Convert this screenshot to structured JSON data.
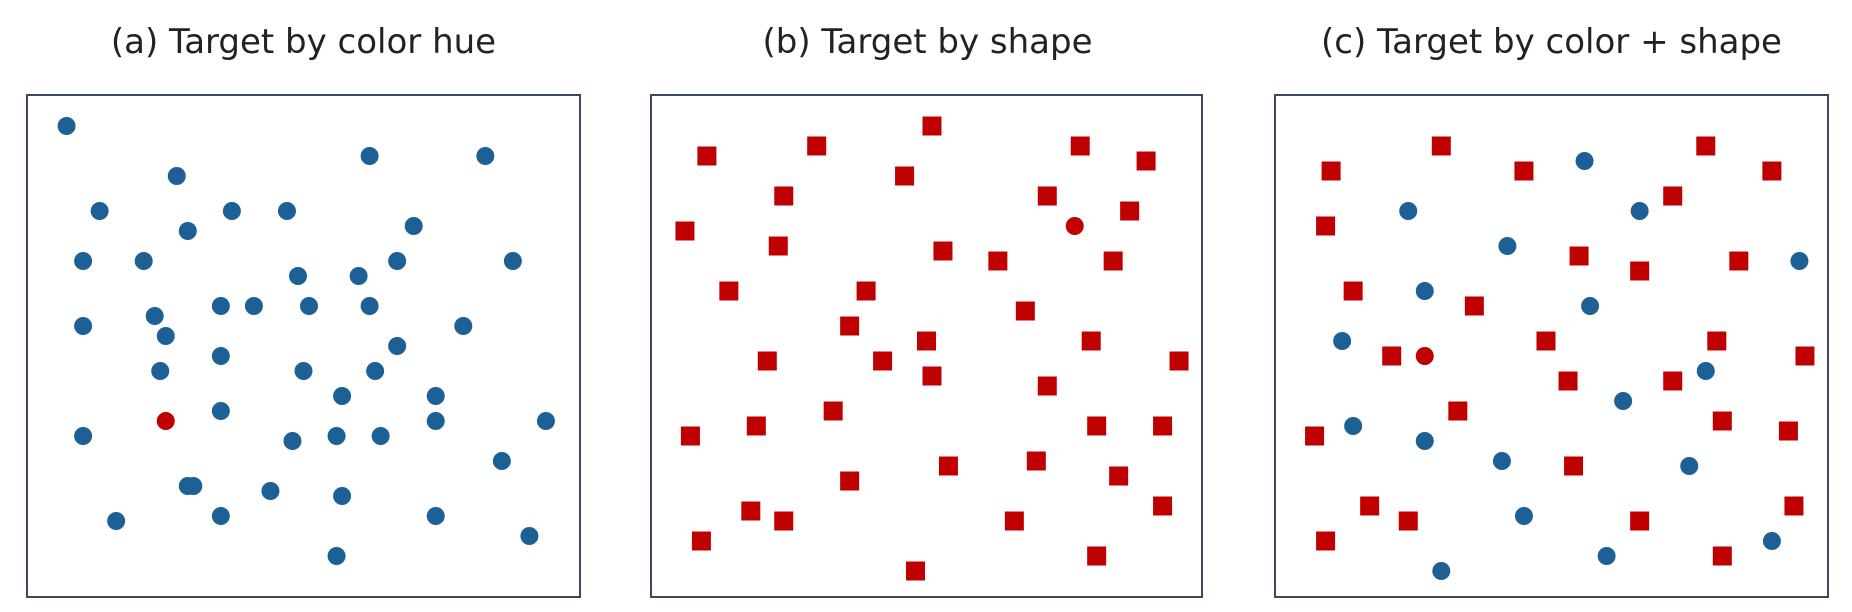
{
  "colors": {
    "distractor_blue": "#1d6096",
    "target_red": "#c00000",
    "frame": "#3a4a66"
  },
  "panels": [
    {
      "title": "(a)  Target by color hue",
      "items": [
        {
          "s": "c",
          "c": "b",
          "p": [
            0.07,
            0.06
          ]
        },
        {
          "s": "c",
          "c": "b",
          "p": [
            0.62,
            0.12
          ]
        },
        {
          "s": "c",
          "c": "b",
          "p": [
            0.83,
            0.12
          ]
        },
        {
          "s": "c",
          "c": "b",
          "p": [
            0.27,
            0.16
          ]
        },
        {
          "s": "c",
          "c": "b",
          "p": [
            0.13,
            0.23
          ]
        },
        {
          "s": "c",
          "c": "b",
          "p": [
            0.37,
            0.23
          ]
        },
        {
          "s": "c",
          "c": "b",
          "p": [
            0.47,
            0.23
          ]
        },
        {
          "s": "c",
          "c": "b",
          "p": [
            0.29,
            0.27
          ]
        },
        {
          "s": "c",
          "c": "b",
          "p": [
            0.7,
            0.26
          ]
        },
        {
          "s": "c",
          "c": "b",
          "p": [
            0.1,
            0.33
          ]
        },
        {
          "s": "c",
          "c": "b",
          "p": [
            0.21,
            0.33
          ]
        },
        {
          "s": "c",
          "c": "b",
          "p": [
            0.67,
            0.33
          ]
        },
        {
          "s": "c",
          "c": "b",
          "p": [
            0.88,
            0.33
          ]
        },
        {
          "s": "c",
          "c": "b",
          "p": [
            0.49,
            0.36
          ]
        },
        {
          "s": "c",
          "c": "b",
          "p": [
            0.6,
            0.36
          ]
        },
        {
          "s": "c",
          "c": "b",
          "p": [
            0.35,
            0.42
          ]
        },
        {
          "s": "c",
          "c": "b",
          "p": [
            0.41,
            0.42
          ]
        },
        {
          "s": "c",
          "c": "b",
          "p": [
            0.51,
            0.42
          ]
        },
        {
          "s": "c",
          "c": "b",
          "p": [
            0.62,
            0.42
          ]
        },
        {
          "s": "c",
          "c": "b",
          "p": [
            0.23,
            0.44
          ]
        },
        {
          "s": "c",
          "c": "b",
          "p": [
            0.1,
            0.46
          ]
        },
        {
          "s": "c",
          "c": "b",
          "p": [
            0.79,
            0.46
          ]
        },
        {
          "s": "c",
          "c": "b",
          "p": [
            0.25,
            0.48
          ]
        },
        {
          "s": "c",
          "c": "b",
          "p": [
            0.67,
            0.5
          ]
        },
        {
          "s": "c",
          "c": "b",
          "p": [
            0.35,
            0.52
          ]
        },
        {
          "s": "c",
          "c": "b",
          "p": [
            0.24,
            0.55
          ]
        },
        {
          "s": "c",
          "c": "b",
          "p": [
            0.5,
            0.55
          ]
        },
        {
          "s": "c",
          "c": "b",
          "p": [
            0.63,
            0.55
          ]
        },
        {
          "s": "c",
          "c": "b",
          "p": [
            0.57,
            0.6
          ]
        },
        {
          "s": "c",
          "c": "b",
          "p": [
            0.74,
            0.6
          ]
        },
        {
          "s": "c",
          "c": "b",
          "p": [
            0.35,
            0.63
          ]
        },
        {
          "s": "c",
          "c": "r",
          "p": [
            0.25,
            0.65
          ]
        },
        {
          "s": "c",
          "c": "b",
          "p": [
            0.74,
            0.65
          ]
        },
        {
          "s": "c",
          "c": "b",
          "p": [
            0.94,
            0.65
          ]
        },
        {
          "s": "c",
          "c": "b",
          "p": [
            0.1,
            0.68
          ]
        },
        {
          "s": "c",
          "c": "b",
          "p": [
            0.48,
            0.69
          ]
        },
        {
          "s": "c",
          "c": "b",
          "p": [
            0.56,
            0.68
          ]
        },
        {
          "s": "c",
          "c": "b",
          "p": [
            0.64,
            0.68
          ]
        },
        {
          "s": "c",
          "c": "b",
          "p": [
            0.86,
            0.73
          ]
        },
        {
          "s": "c",
          "c": "b",
          "p": [
            0.29,
            0.78
          ]
        },
        {
          "s": "c",
          "c": "b",
          "p": [
            0.3,
            0.78
          ]
        },
        {
          "s": "c",
          "c": "b",
          "p": [
            0.44,
            0.79
          ]
        },
        {
          "s": "c",
          "c": "b",
          "p": [
            0.57,
            0.8
          ]
        },
        {
          "s": "c",
          "c": "b",
          "p": [
            0.16,
            0.85
          ]
        },
        {
          "s": "c",
          "c": "b",
          "p": [
            0.35,
            0.84
          ]
        },
        {
          "s": "c",
          "c": "b",
          "p": [
            0.74,
            0.84
          ]
        },
        {
          "s": "c",
          "c": "b",
          "p": [
            0.91,
            0.88
          ]
        },
        {
          "s": "c",
          "c": "b",
          "p": [
            0.56,
            0.92
          ]
        }
      ]
    },
    {
      "title": "(b)  Target by shape",
      "items": [
        {
          "s": "q",
          "c": "r",
          "p": [
            0.51,
            0.06
          ]
        },
        {
          "s": "q",
          "c": "r",
          "p": [
            0.3,
            0.1
          ]
        },
        {
          "s": "q",
          "c": "r",
          "p": [
            0.78,
            0.1
          ]
        },
        {
          "s": "q",
          "c": "r",
          "p": [
            0.1,
            0.12
          ]
        },
        {
          "s": "q",
          "c": "r",
          "p": [
            0.9,
            0.13
          ]
        },
        {
          "s": "q",
          "c": "r",
          "p": [
            0.46,
            0.16
          ]
        },
        {
          "s": "q",
          "c": "r",
          "p": [
            0.24,
            0.2
          ]
        },
        {
          "s": "q",
          "c": "r",
          "p": [
            0.72,
            0.2
          ]
        },
        {
          "s": "q",
          "c": "r",
          "p": [
            0.87,
            0.23
          ]
        },
        {
          "s": "c",
          "c": "r",
          "p": [
            0.77,
            0.26
          ]
        },
        {
          "s": "q",
          "c": "r",
          "p": [
            0.06,
            0.27
          ]
        },
        {
          "s": "q",
          "c": "r",
          "p": [
            0.23,
            0.3
          ]
        },
        {
          "s": "q",
          "c": "r",
          "p": [
            0.53,
            0.31
          ]
        },
        {
          "s": "q",
          "c": "r",
          "p": [
            0.63,
            0.33
          ]
        },
        {
          "s": "q",
          "c": "r",
          "p": [
            0.84,
            0.33
          ]
        },
        {
          "s": "q",
          "c": "r",
          "p": [
            0.14,
            0.39
          ]
        },
        {
          "s": "q",
          "c": "r",
          "p": [
            0.39,
            0.39
          ]
        },
        {
          "s": "q",
          "c": "r",
          "p": [
            0.68,
            0.43
          ]
        },
        {
          "s": "q",
          "c": "r",
          "p": [
            0.36,
            0.46
          ]
        },
        {
          "s": "q",
          "c": "r",
          "p": [
            0.5,
            0.49
          ]
        },
        {
          "s": "q",
          "c": "r",
          "p": [
            0.8,
            0.49
          ]
        },
        {
          "s": "q",
          "c": "r",
          "p": [
            0.21,
            0.53
          ]
        },
        {
          "s": "q",
          "c": "r",
          "p": [
            0.42,
            0.53
          ]
        },
        {
          "s": "q",
          "c": "r",
          "p": [
            0.96,
            0.53
          ]
        },
        {
          "s": "q",
          "c": "r",
          "p": [
            0.51,
            0.56
          ]
        },
        {
          "s": "q",
          "c": "r",
          "p": [
            0.72,
            0.58
          ]
        },
        {
          "s": "q",
          "c": "r",
          "p": [
            0.33,
            0.63
          ]
        },
        {
          "s": "q",
          "c": "r",
          "p": [
            0.19,
            0.66
          ]
        },
        {
          "s": "q",
          "c": "r",
          "p": [
            0.81,
            0.66
          ]
        },
        {
          "s": "q",
          "c": "r",
          "p": [
            0.93,
            0.66
          ]
        },
        {
          "s": "q",
          "c": "r",
          "p": [
            0.07,
            0.68
          ]
        },
        {
          "s": "q",
          "c": "r",
          "p": [
            0.7,
            0.73
          ]
        },
        {
          "s": "q",
          "c": "r",
          "p": [
            0.54,
            0.74
          ]
        },
        {
          "s": "q",
          "c": "r",
          "p": [
            0.36,
            0.77
          ]
        },
        {
          "s": "q",
          "c": "r",
          "p": [
            0.85,
            0.76
          ]
        },
        {
          "s": "q",
          "c": "r",
          "p": [
            0.93,
            0.82
          ]
        },
        {
          "s": "q",
          "c": "r",
          "p": [
            0.18,
            0.83
          ]
        },
        {
          "s": "q",
          "c": "r",
          "p": [
            0.24,
            0.85
          ]
        },
        {
          "s": "q",
          "c": "r",
          "p": [
            0.66,
            0.85
          ]
        },
        {
          "s": "q",
          "c": "r",
          "p": [
            0.09,
            0.89
          ]
        },
        {
          "s": "q",
          "c": "r",
          "p": [
            0.81,
            0.92
          ]
        },
        {
          "s": "q",
          "c": "r",
          "p": [
            0.48,
            0.95
          ]
        }
      ]
    },
    {
      "title": "(c)  Target by color + shape",
      "items": [
        {
          "s": "q",
          "c": "r",
          "p": [
            0.3,
            0.1
          ]
        },
        {
          "s": "q",
          "c": "r",
          "p": [
            0.78,
            0.1
          ]
        },
        {
          "s": "c",
          "c": "b",
          "p": [
            0.56,
            0.13
          ]
        },
        {
          "s": "q",
          "c": "r",
          "p": [
            0.1,
            0.15
          ]
        },
        {
          "s": "q",
          "c": "r",
          "p": [
            0.45,
            0.15
          ]
        },
        {
          "s": "q",
          "c": "r",
          "p": [
            0.9,
            0.15
          ]
        },
        {
          "s": "q",
          "c": "r",
          "p": [
            0.72,
            0.2
          ]
        },
        {
          "s": "c",
          "c": "b",
          "p": [
            0.24,
            0.23
          ]
        },
        {
          "s": "c",
          "c": "b",
          "p": [
            0.66,
            0.23
          ]
        },
        {
          "s": "q",
          "c": "r",
          "p": [
            0.09,
            0.26
          ]
        },
        {
          "s": "c",
          "c": "b",
          "p": [
            0.42,
            0.3
          ]
        },
        {
          "s": "q",
          "c": "r",
          "p": [
            0.55,
            0.32
          ]
        },
        {
          "s": "q",
          "c": "r",
          "p": [
            0.84,
            0.33
          ]
        },
        {
          "s": "c",
          "c": "b",
          "p": [
            0.95,
            0.33
          ]
        },
        {
          "s": "q",
          "c": "r",
          "p": [
            0.66,
            0.35
          ]
        },
        {
          "s": "q",
          "c": "r",
          "p": [
            0.14,
            0.39
          ]
        },
        {
          "s": "c",
          "c": "b",
          "p": [
            0.27,
            0.39
          ]
        },
        {
          "s": "q",
          "c": "r",
          "p": [
            0.36,
            0.42
          ]
        },
        {
          "s": "c",
          "c": "b",
          "p": [
            0.57,
            0.42
          ]
        },
        {
          "s": "c",
          "c": "b",
          "p": [
            0.12,
            0.49
          ]
        },
        {
          "s": "q",
          "c": "r",
          "p": [
            0.49,
            0.49
          ]
        },
        {
          "s": "q",
          "c": "r",
          "p": [
            0.8,
            0.49
          ]
        },
        {
          "s": "q",
          "c": "r",
          "p": [
            0.21,
            0.52
          ]
        },
        {
          "s": "c",
          "c": "r",
          "p": [
            0.27,
            0.52
          ]
        },
        {
          "s": "q",
          "c": "r",
          "p": [
            0.96,
            0.52
          ]
        },
        {
          "s": "c",
          "c": "b",
          "p": [
            0.78,
            0.55
          ]
        },
        {
          "s": "q",
          "c": "r",
          "p": [
            0.53,
            0.57
          ]
        },
        {
          "s": "q",
          "c": "r",
          "p": [
            0.72,
            0.57
          ]
        },
        {
          "s": "c",
          "c": "b",
          "p": [
            0.63,
            0.61
          ]
        },
        {
          "s": "q",
          "c": "r",
          "p": [
            0.33,
            0.63
          ]
        },
        {
          "s": "c",
          "c": "b",
          "p": [
            0.14,
            0.66
          ]
        },
        {
          "s": "q",
          "c": "r",
          "p": [
            0.81,
            0.65
          ]
        },
        {
          "s": "q",
          "c": "r",
          "p": [
            0.93,
            0.67
          ]
        },
        {
          "s": "q",
          "c": "r",
          "p": [
            0.07,
            0.68
          ]
        },
        {
          "s": "c",
          "c": "b",
          "p": [
            0.27,
            0.69
          ]
        },
        {
          "s": "c",
          "c": "b",
          "p": [
            0.41,
            0.73
          ]
        },
        {
          "s": "q",
          "c": "r",
          "p": [
            0.54,
            0.74
          ]
        },
        {
          "s": "c",
          "c": "b",
          "p": [
            0.75,
            0.74
          ]
        },
        {
          "s": "q",
          "c": "r",
          "p": [
            0.17,
            0.82
          ]
        },
        {
          "s": "q",
          "c": "r",
          "p": [
            0.94,
            0.82
          ]
        },
        {
          "s": "q",
          "c": "r",
          "p": [
            0.24,
            0.85
          ]
        },
        {
          "s": "c",
          "c": "b",
          "p": [
            0.45,
            0.84
          ]
        },
        {
          "s": "q",
          "c": "r",
          "p": [
            0.66,
            0.85
          ]
        },
        {
          "s": "q",
          "c": "r",
          "p": [
            0.09,
            0.89
          ]
        },
        {
          "s": "c",
          "c": "b",
          "p": [
            0.6,
            0.92
          ]
        },
        {
          "s": "c",
          "c": "b",
          "p": [
            0.9,
            0.89
          ]
        },
        {
          "s": "q",
          "c": "r",
          "p": [
            0.81,
            0.92
          ]
        },
        {
          "s": "c",
          "c": "b",
          "p": [
            0.3,
            0.95
          ]
        }
      ]
    }
  ]
}
